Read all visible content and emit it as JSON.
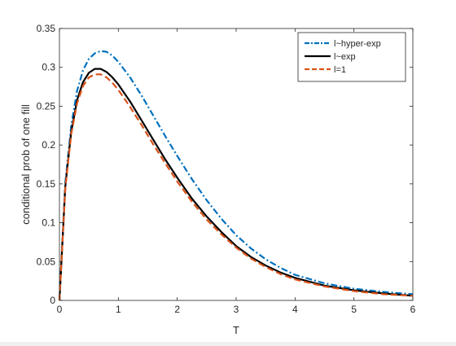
{
  "chart_data": {
    "type": "line",
    "xlabel": "T",
    "ylabel": "conditional prob of one fill",
    "xlim": [
      0,
      6
    ],
    "ylim": [
      0,
      0.35
    ],
    "xticks": [
      0,
      1,
      2,
      3,
      4,
      5,
      6
    ],
    "xtick_labels": [
      "0",
      "1",
      "2",
      "3",
      "4",
      "5",
      "6"
    ],
    "yticks": [
      0,
      0.05,
      0.1,
      0.15,
      0.2,
      0.25,
      0.3,
      0.35
    ],
    "ytick_labels": [
      "0",
      "0.05",
      "0.1",
      "0.15",
      "0.2",
      "0.25",
      "0.3",
      "0.35"
    ],
    "grid": false,
    "legend_position": "top-right",
    "series": [
      {
        "name": "l~hyper-exp",
        "color": "#0072BD",
        "dash": "dash-dot",
        "x": [
          0,
          0.1,
          0.2,
          0.3,
          0.4,
          0.5,
          0.6,
          0.7,
          0.8,
          0.9,
          1.0,
          1.2,
          1.4,
          1.6,
          1.8,
          2.0,
          2.25,
          2.5,
          2.75,
          3.0,
          3.25,
          3.5,
          3.75,
          4.0,
          4.5,
          5.0,
          5.5,
          6.0
        ],
        "y": [
          0,
          0.152,
          0.225,
          0.27,
          0.296,
          0.311,
          0.318,
          0.321,
          0.32,
          0.315,
          0.307,
          0.287,
          0.263,
          0.237,
          0.211,
          0.186,
          0.156,
          0.129,
          0.105,
          0.084,
          0.067,
          0.053,
          0.042,
          0.033,
          0.022,
          0.015,
          0.011,
          0.008
        ]
      },
      {
        "name": "l~exp",
        "color": "#000000",
        "dash": "solid",
        "x": [
          0,
          0.1,
          0.2,
          0.3,
          0.4,
          0.5,
          0.6,
          0.7,
          0.8,
          0.9,
          1.0,
          1.2,
          1.4,
          1.6,
          1.8,
          2.0,
          2.25,
          2.5,
          2.75,
          3.0,
          3.25,
          3.5,
          3.75,
          4.0,
          4.5,
          5.0,
          5.5,
          6.0
        ],
        "y": [
          0,
          0.147,
          0.217,
          0.258,
          0.281,
          0.293,
          0.298,
          0.298,
          0.294,
          0.287,
          0.278,
          0.256,
          0.231,
          0.206,
          0.181,
          0.158,
          0.131,
          0.108,
          0.088,
          0.07,
          0.056,
          0.045,
          0.036,
          0.029,
          0.019,
          0.013,
          0.009,
          0.006
        ]
      },
      {
        "name": "l=1",
        "color": "#D95319",
        "dash": "dashed",
        "x": [
          0,
          0.1,
          0.2,
          0.3,
          0.4,
          0.5,
          0.6,
          0.7,
          0.8,
          0.9,
          1.0,
          1.2,
          1.4,
          1.6,
          1.8,
          2.0,
          2.25,
          2.5,
          2.75,
          3.0,
          3.25,
          3.5,
          3.75,
          4.0,
          4.5,
          5.0,
          5.5,
          6.0
        ],
        "y": [
          0,
          0.145,
          0.214,
          0.254,
          0.276,
          0.287,
          0.291,
          0.291,
          0.287,
          0.28,
          0.271,
          0.249,
          0.225,
          0.2,
          0.176,
          0.153,
          0.127,
          0.104,
          0.085,
          0.068,
          0.054,
          0.043,
          0.034,
          0.027,
          0.018,
          0.012,
          0.008,
          0.006
        ]
      }
    ]
  }
}
